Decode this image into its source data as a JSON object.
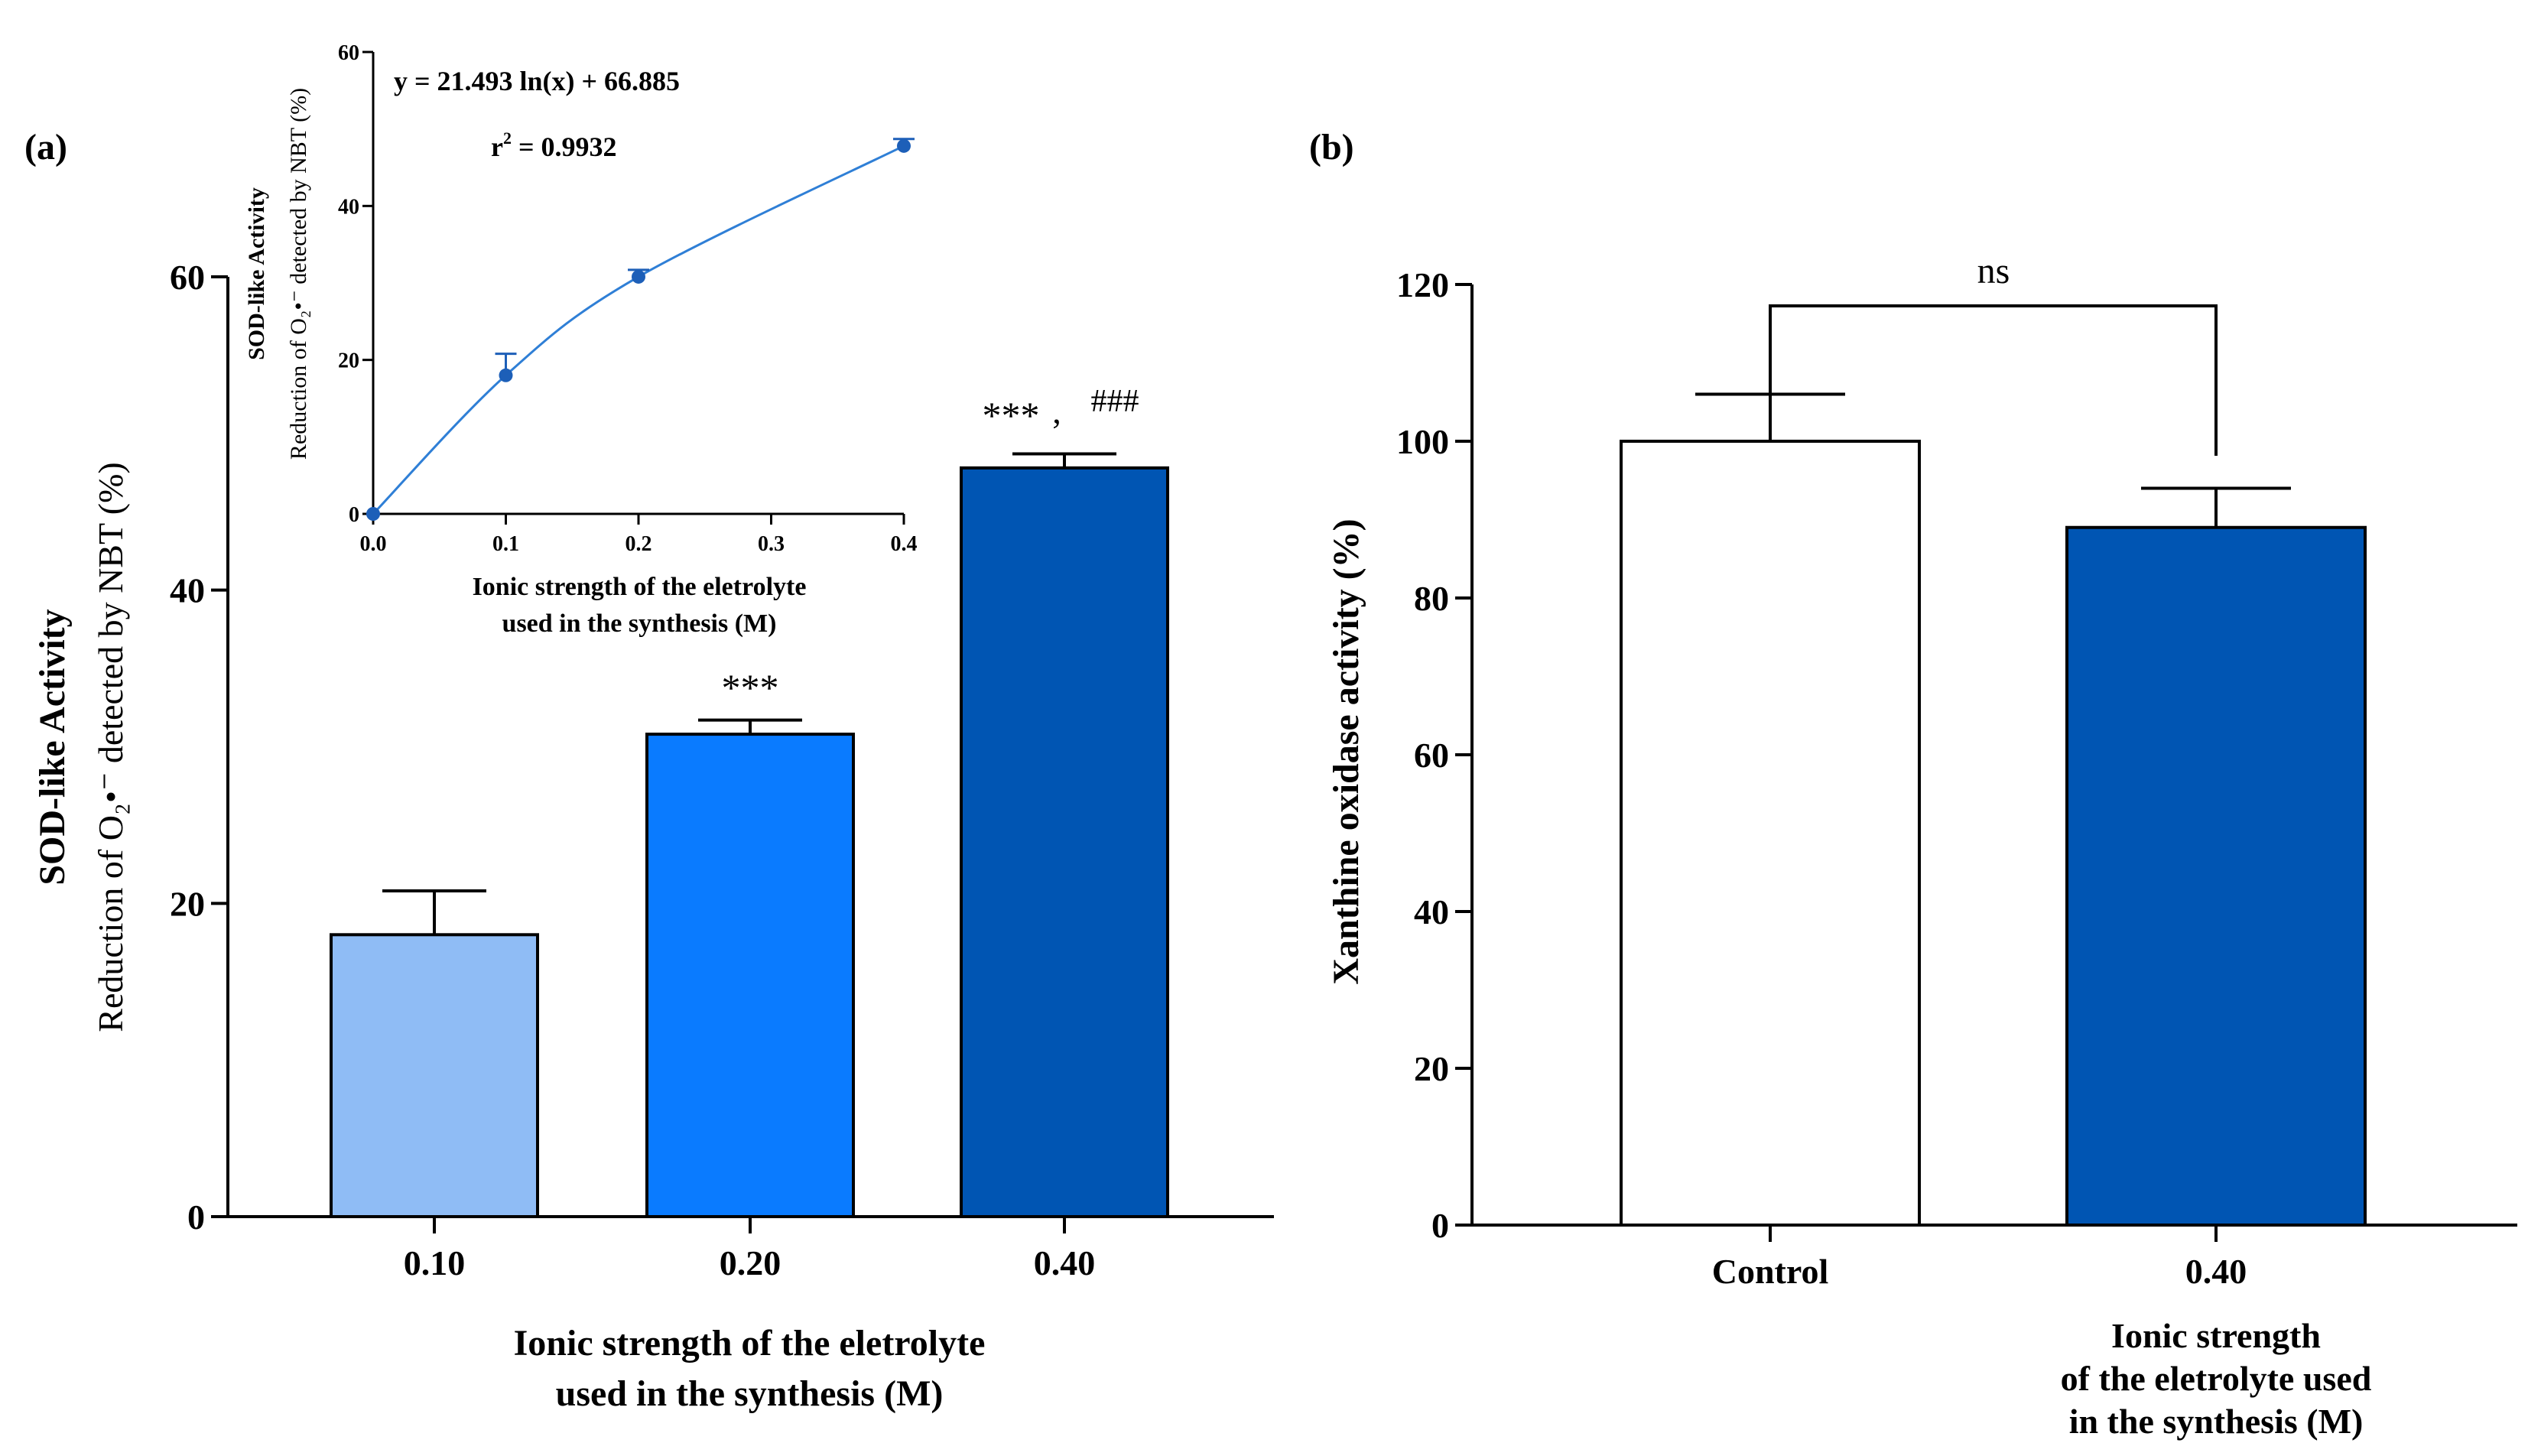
{
  "colors": {
    "bar_010": "#8fbcf5",
    "bar_020": "#0a7bff",
    "bar_040": "#0055b3",
    "control": "#ffffff",
    "inset_line": "#2f7fd6",
    "inset_point": "#1d5fb8"
  },
  "chart_data": [
    {
      "type": "bar",
      "panel_label": "(a)",
      "categories": [
        "0.10",
        "0.20",
        "0.40"
      ],
      "values": [
        18,
        30.8,
        47.8
      ],
      "errors": [
        2.8,
        0.9,
        0.9
      ],
      "ylim": [
        0,
        60
      ],
      "yticks": [
        "0",
        "20",
        "40",
        "60"
      ],
      "ylabel_main": "SOD-like Activity",
      "ylabel_sub": "Reduction of O₂•⁻ detected by NBT (%)",
      "xlabel_line1": "Ionic strength of the eletrolyte",
      "xlabel_line2": "used in the synthesis (M)",
      "annotations": [
        "***",
        "***",
        ","
      ],
      "annotation_hash": "###",
      "inset": {
        "type": "scatter",
        "x": [
          0.0,
          0.1,
          0.2,
          0.4
        ],
        "y": [
          0,
          18,
          30.8,
          47.8
        ],
        "y_errors": [
          0,
          2.8,
          0.9,
          0.9
        ],
        "xlim": [
          0,
          0.4
        ],
        "ylim": [
          0,
          60
        ],
        "xticks": [
          "0.0",
          "0.1",
          "0.2",
          "0.3",
          "0.4"
        ],
        "yticks": [
          "0",
          "20",
          "40",
          "60"
        ],
        "equation": "y = 21.493 ln(x) + 66.885",
        "r2_prefix": "r",
        "r2_sup": "2",
        "r2_value": " = 0.9932",
        "ylabel_main": "SOD-like Activity",
        "ylabel_sub": "Reduction of O₂•⁻ detected by NBT (%)",
        "xlabel_line1": "Ionic strength of the eletrolyte",
        "xlabel_line2": "used in the synthesis (M)"
      }
    },
    {
      "type": "bar",
      "panel_label": "(b)",
      "categories": [
        "Control",
        "0.40"
      ],
      "values": [
        100,
        89
      ],
      "errors": [
        6,
        5
      ],
      "ylim": [
        0,
        120
      ],
      "yticks": [
        "0",
        "20",
        "40",
        "60",
        "80",
        "100",
        "120"
      ],
      "ylabel": "Xanthine oxidase activity (%)",
      "xlabel_line1": "Ionic strength",
      "xlabel_line2": "of the eletrolyte used",
      "xlabel_line3": "in the synthesis (M)",
      "significance": "ns"
    }
  ]
}
